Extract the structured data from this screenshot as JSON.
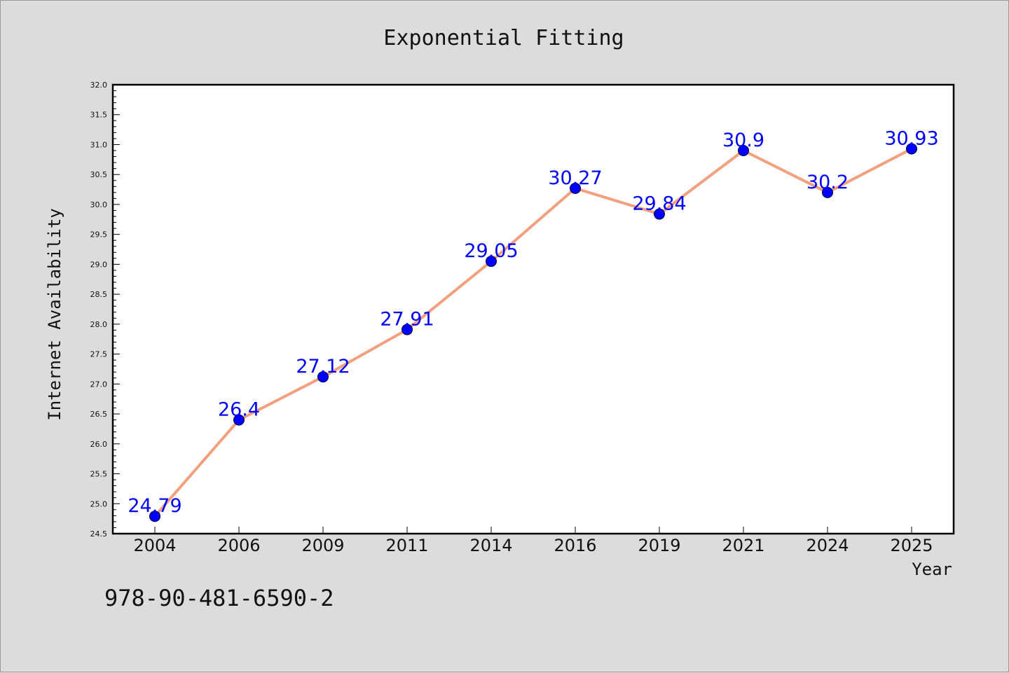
{
  "chart_data": {
    "type": "line",
    "title": "Exponential Fitting",
    "xlabel": "Year",
    "ylabel": "Internet Availability",
    "categories": [
      "2004",
      "2006",
      "2009",
      "2011",
      "2014",
      "2016",
      "2019",
      "2021",
      "2024",
      "2025"
    ],
    "series": [
      {
        "values": [
          24.79,
          26.4,
          27.12,
          27.91,
          29.05,
          30.27,
          29.84,
          30.9,
          30.2,
          30.93
        ],
        "data_labels": [
          "24.79",
          "26.4",
          "27.12",
          "27.91",
          "29.05",
          "30.27",
          "29.84",
          "30.9",
          "30.2",
          "30.93"
        ],
        "line_color": "#f4a07f",
        "marker_color": "#0000ff"
      }
    ],
    "ylim": [
      24.5,
      32.0
    ],
    "yticks": [
      "24.5",
      "25.0",
      "25.5",
      "26.0",
      "26.5",
      "27.0",
      "27.5",
      "28.0",
      "28.5",
      "29.0",
      "29.5",
      "30.0",
      "30.5",
      "31.0",
      "31.5",
      "32.0"
    ],
    "grid": false,
    "legend": "none"
  },
  "footnote": "978-90-481-6590-2",
  "colors": {
    "background": "#dcdcdc",
    "plot_background": "#ffffff",
    "line": "#f4a07f",
    "marker": "#0000ff",
    "data_label": "#0000ff"
  }
}
